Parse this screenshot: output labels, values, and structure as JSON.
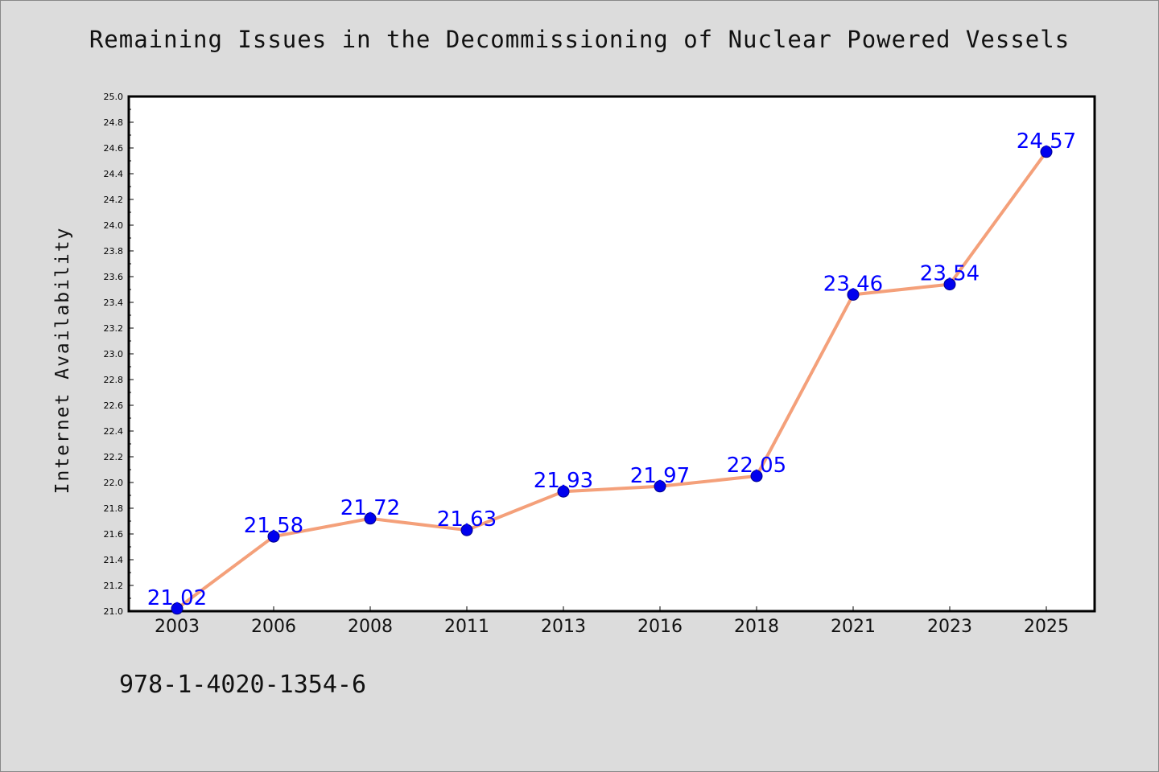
{
  "chart_data": {
    "type": "line",
    "title": "Remaining Issues in the Decommissioning of Nuclear Powered Vessels",
    "ylabel": "Internet Availability",
    "xlabel": "",
    "categories": [
      "2003",
      "2006",
      "2008",
      "2011",
      "2013",
      "2016",
      "2018",
      "2021",
      "2023",
      "2025"
    ],
    "values": [
      21.02,
      21.58,
      21.72,
      21.63,
      21.93,
      21.97,
      22.05,
      23.46,
      23.54,
      24.57
    ],
    "value_labels": [
      "21.02",
      "21.58",
      "21.72",
      "21.63",
      "21.93",
      "21.97",
      "22.05",
      "23.46",
      "23.54",
      "24.57"
    ],
    "ylim": [
      21.0,
      25.0
    ],
    "yticks": [
      "21.0",
      "21.2",
      "21.4",
      "21.6",
      "21.8",
      "22.0",
      "22.2",
      "22.4",
      "22.6",
      "22.8",
      "23.0",
      "23.2",
      "23.4",
      "23.6",
      "23.8",
      "24.0",
      "24.2",
      "24.4",
      "24.6",
      "24.8",
      "25.0"
    ],
    "grid": false,
    "colors": {
      "line": "#f4a07a",
      "marker": "#0000ee",
      "data_label": "#0000ff",
      "plot_background": "#ffffff",
      "figure_background": "#dcdcdc"
    }
  },
  "footer": {
    "code": "978-1-4020-1354-6"
  }
}
